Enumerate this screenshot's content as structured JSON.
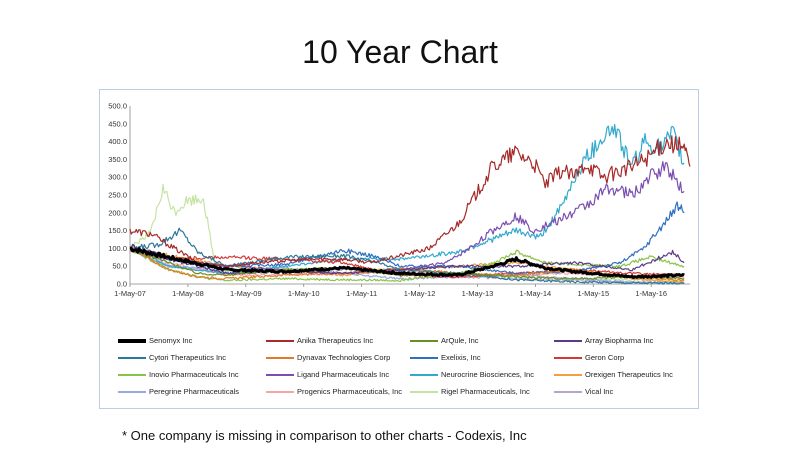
{
  "title": "10 Year Chart",
  "footnote": "* One company is missing in comparison to other charts - Codexis, Inc",
  "chart_data": {
    "type": "line",
    "title": "",
    "xlabel": "",
    "ylabel": "",
    "ylim": [
      0,
      500
    ],
    "yticks": [
      "0.0",
      "50.0",
      "100.0",
      "150.0",
      "200.0",
      "250.0",
      "300.0",
      "350.0",
      "400.0",
      "450.0",
      "500.0"
    ],
    "xlim": [
      2007.33,
      2017.0
    ],
    "xticks": [
      {
        "label": "1-May-07",
        "t": 2007.33
      },
      {
        "label": "1-May-08",
        "t": 2008.33
      },
      {
        "label": "1-May-09",
        "t": 2009.33
      },
      {
        "label": "1-May-10",
        "t": 2010.33
      },
      {
        "label": "1-May-11",
        "t": 2011.33
      },
      {
        "label": "1-May-12",
        "t": 2012.33
      },
      {
        "label": "1-May-13",
        "t": 2013.33
      },
      {
        "label": "1-May-14",
        "t": 2014.33
      },
      {
        "label": "1-May-15",
        "t": 2015.33
      },
      {
        "label": "1-May-16",
        "t": 2016.33
      }
    ],
    "series": [
      {
        "name": "Senomyx Inc",
        "color": "#000000",
        "width": 3,
        "points": [
          [
            2007.33,
            100
          ],
          [
            2008.0,
            75
          ],
          [
            2009.0,
            40
          ],
          [
            2010.0,
            35
          ],
          [
            2011.0,
            45
          ],
          [
            2012.0,
            30
          ],
          [
            2013.0,
            25
          ],
          [
            2013.6,
            50
          ],
          [
            2014.0,
            70
          ],
          [
            2014.5,
            45
          ],
          [
            2015.0,
            35
          ],
          [
            2016.0,
            20
          ],
          [
            2016.9,
            25
          ]
        ]
      },
      {
        "name": "Anika Therapeutics Inc",
        "color": "#a52a2a",
        "width": 1.2,
        "points": [
          [
            2007.33,
            150
          ],
          [
            2007.7,
            140
          ],
          [
            2008.0,
            110
          ],
          [
            2008.5,
            60
          ],
          [
            2009.0,
            50
          ],
          [
            2009.5,
            60
          ],
          [
            2010.0,
            65
          ],
          [
            2010.5,
            70
          ],
          [
            2011.0,
            70
          ],
          [
            2011.5,
            60
          ],
          [
            2012.0,
            80
          ],
          [
            2012.5,
            100
          ],
          [
            2013.0,
            170
          ],
          [
            2013.3,
            250
          ],
          [
            2013.6,
            330
          ],
          [
            2014.0,
            370
          ],
          [
            2014.3,
            340
          ],
          [
            2014.5,
            280
          ],
          [
            2014.8,
            320
          ],
          [
            2015.0,
            300
          ],
          [
            2015.2,
            340
          ],
          [
            2015.5,
            300
          ],
          [
            2016.0,
            330
          ],
          [
            2016.3,
            360
          ],
          [
            2016.6,
            400
          ],
          [
            2016.9,
            380
          ],
          [
            2017.0,
            330
          ]
        ]
      },
      {
        "name": "ArQule, Inc",
        "color": "#6b8e23",
        "width": 1.2,
        "points": [
          [
            2007.33,
            100
          ],
          [
            2008.0,
            60
          ],
          [
            2008.5,
            30
          ],
          [
            2009.0,
            25
          ],
          [
            2010.0,
            40
          ],
          [
            2011.0,
            45
          ],
          [
            2012.0,
            25
          ],
          [
            2013.0,
            30
          ],
          [
            2014.0,
            20
          ],
          [
            2015.0,
            15
          ],
          [
            2016.0,
            20
          ],
          [
            2016.9,
            15
          ]
        ]
      },
      {
        "name": "Array Biopharma Inc",
        "color": "#5b3a8a",
        "width": 1.2,
        "points": [
          [
            2007.33,
            110
          ],
          [
            2008.0,
            70
          ],
          [
            2009.0,
            30
          ],
          [
            2010.0,
            35
          ],
          [
            2011.0,
            30
          ],
          [
            2012.0,
            40
          ],
          [
            2013.0,
            50
          ],
          [
            2014.0,
            50
          ],
          [
            2015.0,
            60
          ],
          [
            2016.0,
            40
          ],
          [
            2016.7,
            90
          ],
          [
            2016.9,
            60
          ]
        ]
      },
      {
        "name": "Cytori Therapeutics Inc",
        "color": "#2a7a9a",
        "width": 1.2,
        "points": [
          [
            2007.33,
            100
          ],
          [
            2007.8,
            110
          ],
          [
            2008.2,
            150
          ],
          [
            2008.5,
            90
          ],
          [
            2009.0,
            50
          ],
          [
            2010.0,
            75
          ],
          [
            2011.0,
            80
          ],
          [
            2011.6,
            60
          ],
          [
            2012.0,
            40
          ],
          [
            2013.0,
            30
          ],
          [
            2014.0,
            12
          ],
          [
            2015.0,
            6
          ],
          [
            2016.0,
            3
          ],
          [
            2016.9,
            2
          ]
        ]
      },
      {
        "name": "Dynavax Technologies Corp",
        "color": "#e07b2a",
        "width": 1.2,
        "points": [
          [
            2007.33,
            100
          ],
          [
            2008.0,
            40
          ],
          [
            2008.5,
            20
          ],
          [
            2009.0,
            15
          ],
          [
            2010.0,
            25
          ],
          [
            2011.0,
            30
          ],
          [
            2012.0,
            45
          ],
          [
            2013.0,
            30
          ],
          [
            2014.0,
            25
          ],
          [
            2015.0,
            40
          ],
          [
            2016.0,
            20
          ],
          [
            2016.9,
            10
          ]
        ]
      },
      {
        "name": "Exelixis, Inc",
        "color": "#2f6fbf",
        "width": 1.2,
        "points": [
          [
            2007.33,
            100
          ],
          [
            2008.0,
            70
          ],
          [
            2009.0,
            50
          ],
          [
            2010.0,
            55
          ],
          [
            2011.0,
            95
          ],
          [
            2011.5,
            80
          ],
          [
            2012.0,
            50
          ],
          [
            2013.0,
            50
          ],
          [
            2014.0,
            30
          ],
          [
            2015.0,
            35
          ],
          [
            2015.8,
            60
          ],
          [
            2016.2,
            100
          ],
          [
            2016.5,
            160
          ],
          [
            2016.8,
            220
          ],
          [
            2016.9,
            200
          ]
        ]
      },
      {
        "name": "Geron Corp",
        "color": "#d13a3a",
        "width": 1.2,
        "points": [
          [
            2007.33,
            100
          ],
          [
            2008.0,
            70
          ],
          [
            2009.0,
            75
          ],
          [
            2010.0,
            70
          ],
          [
            2011.0,
            60
          ],
          [
            2012.0,
            25
          ],
          [
            2013.0,
            20
          ],
          [
            2014.0,
            30
          ],
          [
            2015.0,
            40
          ],
          [
            2016.0,
            30
          ],
          [
            2016.9,
            25
          ]
        ]
      },
      {
        "name": "Inovio Pharmaceuticals Inc",
        "color": "#8bc34a",
        "width": 1.2,
        "points": [
          [
            2007.33,
            100
          ],
          [
            2008.0,
            40
          ],
          [
            2008.7,
            15
          ],
          [
            2009.0,
            10
          ],
          [
            2010.0,
            15
          ],
          [
            2011.0,
            12
          ],
          [
            2012.0,
            10
          ],
          [
            2013.0,
            30
          ],
          [
            2013.6,
            60
          ],
          [
            2014.0,
            90
          ],
          [
            2014.5,
            60
          ],
          [
            2015.0,
            55
          ],
          [
            2015.8,
            50
          ],
          [
            2016.3,
            75
          ],
          [
            2016.9,
            50
          ]
        ]
      },
      {
        "name": "Ligand Pharmaceuticals Inc",
        "color": "#7b4fb0",
        "width": 1.2,
        "points": [
          [
            2007.33,
            100
          ],
          [
            2008.0,
            70
          ],
          [
            2009.0,
            50
          ],
          [
            2010.0,
            40
          ],
          [
            2011.0,
            30
          ],
          [
            2012.0,
            40
          ],
          [
            2012.8,
            60
          ],
          [
            2013.2,
            100
          ],
          [
            2013.6,
            150
          ],
          [
            2014.0,
            190
          ],
          [
            2014.3,
            150
          ],
          [
            2014.6,
            170
          ],
          [
            2015.0,
            200
          ],
          [
            2015.3,
            230
          ],
          [
            2015.6,
            270
          ],
          [
            2016.0,
            250
          ],
          [
            2016.3,
            300
          ],
          [
            2016.6,
            330
          ],
          [
            2016.9,
            260
          ]
        ]
      },
      {
        "name": "Neurocrine Biosciences, Inc",
        "color": "#33aacc",
        "width": 1.2,
        "points": [
          [
            2007.33,
            100
          ],
          [
            2008.0,
            50
          ],
          [
            2009.0,
            30
          ],
          [
            2010.0,
            50
          ],
          [
            2011.0,
            70
          ],
          [
            2012.0,
            70
          ],
          [
            2013.0,
            90
          ],
          [
            2013.5,
            120
          ],
          [
            2014.0,
            150
          ],
          [
            2014.4,
            130
          ],
          [
            2014.8,
            220
          ],
          [
            2015.0,
            300
          ],
          [
            2015.2,
            350
          ],
          [
            2015.5,
            420
          ],
          [
            2015.7,
            440
          ],
          [
            2016.0,
            330
          ],
          [
            2016.2,
            400
          ],
          [
            2016.5,
            380
          ],
          [
            2016.7,
            420
          ],
          [
            2016.9,
            340
          ]
        ]
      },
      {
        "name": "Orexigen Therapeutics Inc",
        "color": "#f0a040",
        "width": 1.2,
        "points": [
          [
            2007.33,
            100
          ],
          [
            2008.0,
            80
          ],
          [
            2009.0,
            50
          ],
          [
            2010.0,
            40
          ],
          [
            2011.0,
            25
          ],
          [
            2012.0,
            40
          ],
          [
            2013.0,
            50
          ],
          [
            2014.0,
            60
          ],
          [
            2015.0,
            40
          ],
          [
            2016.0,
            15
          ],
          [
            2016.9,
            5
          ]
        ]
      },
      {
        "name": "Peregrine Pharmaceuticals",
        "color": "#9aa8e0",
        "width": 1.2,
        "points": [
          [
            2007.33,
            100
          ],
          [
            2008.0,
            50
          ],
          [
            2009.0,
            40
          ],
          [
            2010.0,
            45
          ],
          [
            2011.0,
            30
          ],
          [
            2012.0,
            15
          ],
          [
            2013.0,
            20
          ],
          [
            2014.0,
            25
          ],
          [
            2015.0,
            15
          ],
          [
            2016.0,
            5
          ],
          [
            2016.9,
            3
          ]
        ]
      },
      {
        "name": "Progenics Pharmaceuticals, Inc",
        "color": "#f4a6a6",
        "width": 1.2,
        "points": [
          [
            2007.33,
            100
          ],
          [
            2008.0,
            60
          ],
          [
            2009.0,
            25
          ],
          [
            2010.0,
            25
          ],
          [
            2011.0,
            30
          ],
          [
            2012.0,
            40
          ],
          [
            2013.0,
            20
          ],
          [
            2014.0,
            25
          ],
          [
            2015.0,
            30
          ],
          [
            2016.0,
            20
          ],
          [
            2016.9,
            18
          ]
        ]
      },
      {
        "name": "Rigel Pharmaceuticals, Inc",
        "color": "#c6e3a4",
        "width": 1.2,
        "points": [
          [
            2007.33,
            100
          ],
          [
            2007.7,
            150
          ],
          [
            2007.9,
            265
          ],
          [
            2008.1,
            200
          ],
          [
            2008.3,
            230
          ],
          [
            2008.6,
            240
          ],
          [
            2008.8,
            50
          ],
          [
            2009.0,
            35
          ],
          [
            2010.0,
            40
          ],
          [
            2011.0,
            45
          ],
          [
            2012.0,
            40
          ],
          [
            2013.0,
            30
          ],
          [
            2014.0,
            20
          ],
          [
            2015.0,
            15
          ],
          [
            2016.0,
            12
          ],
          [
            2016.9,
            10
          ]
        ]
      },
      {
        "name": "Vical Inc",
        "color": "#b7a6c9",
        "width": 1.2,
        "points": [
          [
            2007.33,
            100
          ],
          [
            2008.0,
            50
          ],
          [
            2009.0,
            30
          ],
          [
            2010.0,
            35
          ],
          [
            2011.0,
            40
          ],
          [
            2012.0,
            35
          ],
          [
            2013.0,
            20
          ],
          [
            2014.0,
            15
          ],
          [
            2015.0,
            10
          ],
          [
            2016.0,
            5
          ],
          [
            2016.9,
            4
          ]
        ]
      }
    ]
  }
}
